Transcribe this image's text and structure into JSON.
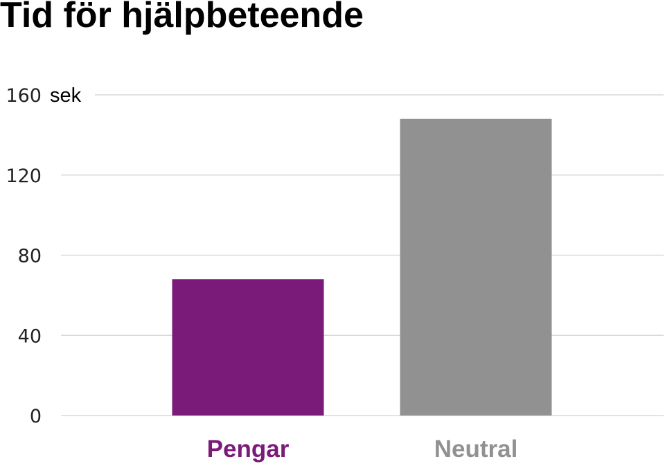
{
  "chart_data": {
    "type": "bar",
    "title": "Tid för hjälpbeteende",
    "ylabel": "sek",
    "xlabel": "",
    "categories": [
      "Pengar",
      "Neutral"
    ],
    "values": [
      68,
      148
    ],
    "colors": [
      "#7a1a79",
      "#919191"
    ],
    "ylim": [
      0,
      160
    ],
    "yticks": [
      0,
      40,
      80,
      120,
      160
    ],
    "grid": true
  }
}
